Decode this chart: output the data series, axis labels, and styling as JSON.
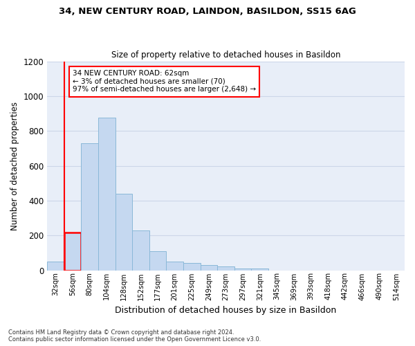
{
  "title1": "34, NEW CENTURY ROAD, LAINDON, BASILDON, SS15 6AG",
  "title2": "Size of property relative to detached houses in Basildon",
  "xlabel": "Distribution of detached houses by size in Basildon",
  "ylabel": "Number of detached properties",
  "categories": [
    "32sqm",
    "56sqm",
    "80sqm",
    "104sqm",
    "128sqm",
    "152sqm",
    "177sqm",
    "201sqm",
    "225sqm",
    "249sqm",
    "273sqm",
    "297sqm",
    "321sqm",
    "345sqm",
    "369sqm",
    "393sqm",
    "418sqm",
    "442sqm",
    "466sqm",
    "490sqm",
    "514sqm"
  ],
  "values": [
    50,
    215,
    730,
    875,
    440,
    230,
    110,
    48,
    40,
    30,
    22,
    10,
    10,
    0,
    0,
    0,
    0,
    0,
    0,
    0,
    0
  ],
  "bar_color": "#c5d8f0",
  "bar_edge_color": "#8ab8d8",
  "highlight_bar_index": 1,
  "highlight_edge_color": "red",
  "vline_x": 0.5,
  "annotation_text": "34 NEW CENTURY ROAD: 62sqm\n← 3% of detached houses are smaller (70)\n97% of semi-detached houses are larger (2,648) →",
  "annotation_box_color": "white",
  "annotation_box_edge": "red",
  "footnote": "Contains HM Land Registry data © Crown copyright and database right 2024.\nContains public sector information licensed under the Open Government Licence v3.0.",
  "ylim": [
    0,
    1200
  ],
  "yticks": [
    0,
    200,
    400,
    600,
    800,
    1000,
    1200
  ],
  "grid_color": "#ccd6e8",
  "bg_color": "#e8eef8"
}
